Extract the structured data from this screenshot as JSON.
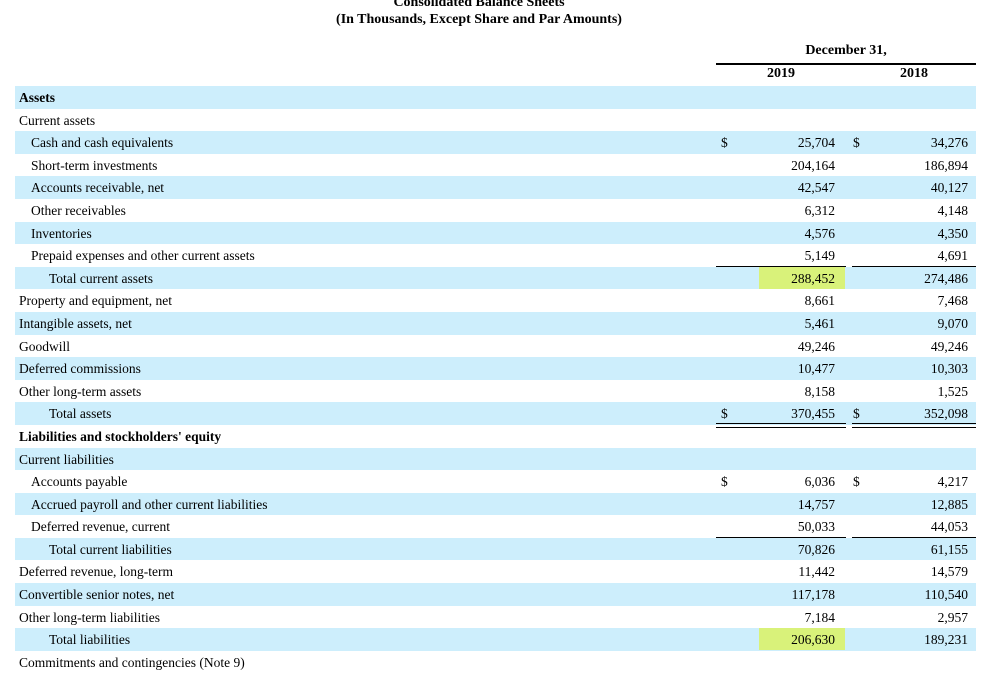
{
  "header": {
    "title": "Consolidated Balance Sheets",
    "subtitle": "(In Thousands, Except Share and Par Amounts)",
    "period": "December 31,",
    "year1": "2019",
    "year2": "2018"
  },
  "rows": [
    {
      "label": "Assets",
      "indent": 0,
      "bold": true,
      "shade": true
    },
    {
      "label": "Current assets",
      "indent": 0,
      "shade": false
    },
    {
      "label": "Cash and cash equivalents",
      "indent": 1,
      "shade": true,
      "cur": true,
      "v2019": "25,704",
      "v2018": "34,276"
    },
    {
      "label": "Short-term investments",
      "indent": 1,
      "shade": false,
      "v2019": "204,164",
      "v2018": "186,894"
    },
    {
      "label": "Accounts receivable, net",
      "indent": 1,
      "shade": true,
      "v2019": "42,547",
      "v2018": "40,127"
    },
    {
      "label": "Other receivables",
      "indent": 1,
      "shade": false,
      "v2019": "6,312",
      "v2018": "4,148"
    },
    {
      "label": "Inventories",
      "indent": 1,
      "shade": true,
      "v2019": "4,576",
      "v2018": "4,350"
    },
    {
      "label": "Prepaid expenses and other current assets",
      "indent": 1,
      "shade": false,
      "v2019": "5,149",
      "v2018": "4,691",
      "border": "single"
    },
    {
      "label": "Total current assets",
      "indent": 2,
      "shade": true,
      "v2019": "288,452",
      "v2018": "274,486",
      "highlight": true
    },
    {
      "label": "Property and equipment, net",
      "indent": 0,
      "shade": false,
      "v2019": "8,661",
      "v2018": "7,468"
    },
    {
      "label": "Intangible assets, net",
      "indent": 0,
      "shade": true,
      "v2019": "5,461",
      "v2018": "9,070"
    },
    {
      "label": "Goodwill",
      "indent": 0,
      "shade": false,
      "v2019": "49,246",
      "v2018": "49,246"
    },
    {
      "label": "Deferred commissions",
      "indent": 0,
      "shade": true,
      "v2019": "10,477",
      "v2018": "10,303"
    },
    {
      "label": "Other long-term assets",
      "indent": 0,
      "shade": false,
      "v2019": "8,158",
      "v2018": "1,525",
      "border": "single"
    },
    {
      "label": "Total assets",
      "indent": 2,
      "shade": true,
      "cur": true,
      "v2019": "370,455",
      "v2018": "352,098",
      "border": "double"
    },
    {
      "label": "Liabilities and stockholders' equity",
      "indent": 0,
      "bold": true,
      "shade": false
    },
    {
      "label": "Current liabilities",
      "indent": 0,
      "shade": true
    },
    {
      "label": "Accounts payable",
      "indent": 1,
      "shade": false,
      "cur": true,
      "v2019": "6,036",
      "v2018": "4,217"
    },
    {
      "label": "Accrued payroll and other current liabilities",
      "indent": 1,
      "shade": true,
      "v2019": "14,757",
      "v2018": "12,885"
    },
    {
      "label": "Deferred revenue, current",
      "indent": 1,
      "shade": false,
      "v2019": "50,033",
      "v2018": "44,053",
      "border": "single"
    },
    {
      "label": "Total current liabilities",
      "indent": 2,
      "shade": true,
      "v2019": "70,826",
      "v2018": "61,155"
    },
    {
      "label": "Deferred revenue, long-term",
      "indent": 0,
      "shade": false,
      "v2019": "11,442",
      "v2018": "14,579"
    },
    {
      "label": "Convertible senior notes, net",
      "indent": 0,
      "shade": true,
      "v2019": "117,178",
      "v2018": "110,540"
    },
    {
      "label": "Other long-term liabilities",
      "indent": 0,
      "shade": false,
      "v2019": "7,184",
      "v2018": "2,957",
      "border": "single"
    },
    {
      "label": "Total liabilities",
      "indent": 2,
      "shade": true,
      "v2019": "206,630",
      "v2018": "189,231",
      "highlight": true
    },
    {
      "label": "Commitments and contingencies (Note 9)",
      "indent": 0,
      "shade": false
    }
  ],
  "currency_symbol": "$",
  "colors": {
    "row_shade": "#cdeefc",
    "highlight": "#d9f27a"
  }
}
